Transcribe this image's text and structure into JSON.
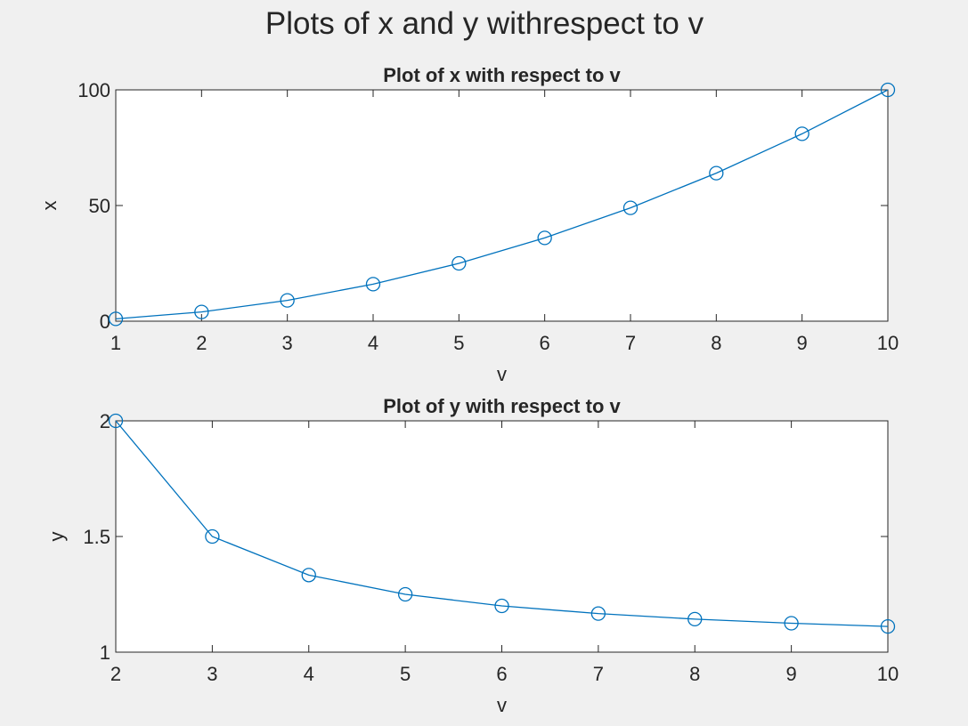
{
  "figure": {
    "title": "Plots of x and y withrespect to v",
    "background": "#f0f0f0"
  },
  "colors": {
    "series": "#0072bd",
    "axes": "#262626",
    "plot_bg": "#ffffff"
  },
  "chart_data": [
    {
      "type": "line",
      "title": "Plot of x with respect to v",
      "xlabel": "v",
      "ylabel": "x",
      "xlim": [
        1,
        10
      ],
      "ylim": [
        0,
        100
      ],
      "xticks": [
        1,
        2,
        3,
        4,
        5,
        6,
        7,
        8,
        9,
        10
      ],
      "yticks": [
        0,
        50,
        100
      ],
      "marker": "circle",
      "grid": false,
      "x": [
        1,
        2,
        3,
        4,
        5,
        6,
        7,
        8,
        9,
        10
      ],
      "y": [
        1,
        4,
        9,
        16,
        25,
        36,
        49,
        64,
        81,
        100
      ]
    },
    {
      "type": "line",
      "title": "Plot of y with respect to v",
      "xlabel": "v",
      "ylabel": "y",
      "xlim": [
        2,
        10
      ],
      "ylim": [
        1,
        2
      ],
      "xticks": [
        2,
        3,
        4,
        5,
        6,
        7,
        8,
        9,
        10
      ],
      "yticks": [
        1,
        1.5,
        2
      ],
      "marker": "circle",
      "grid": false,
      "x": [
        2,
        3,
        4,
        5,
        6,
        7,
        8,
        9,
        10
      ],
      "y": [
        2,
        1.5,
        1.3333,
        1.25,
        1.2,
        1.1667,
        1.1429,
        1.125,
        1.1111
      ]
    }
  ]
}
